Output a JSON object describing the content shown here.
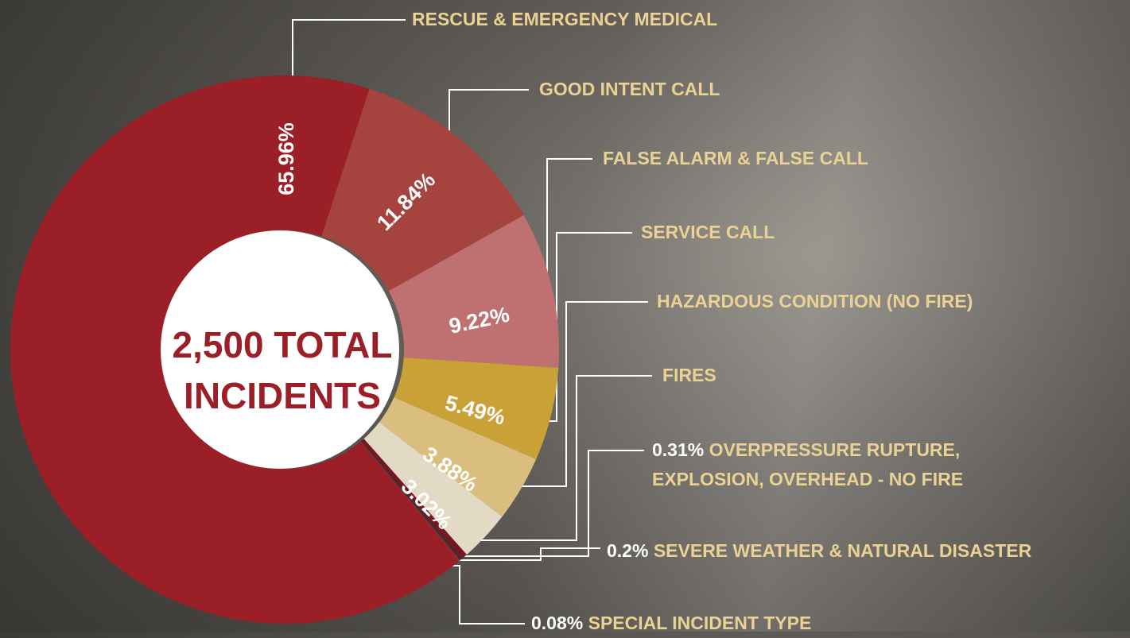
{
  "chart_data": {
    "type": "pie",
    "donut": true,
    "center_label": "2,500 TOTAL INCIDENTS",
    "categories": [
      "RESCUE & EMERGENCY MEDICAL",
      "GOOD INTENT CALL",
      "FALSE ALARM & FALSE CALL",
      "SERVICE CALL",
      "HAZARDOUS CONDITION (NO FIRE)",
      "FIRES",
      "OVERPRESSURE RUPTURE, EXPLOSION, OVERHEAD - NO FIRE",
      "SEVERE WEATHER & NATURAL DISASTER",
      "SPECIAL INCIDENT TYPE"
    ],
    "values": [
      65.96,
      11.84,
      9.22,
      5.49,
      3.88,
      3.02,
      0.31,
      0.2,
      0.08
    ],
    "value_labels": [
      "65.96%",
      "11.84%",
      "9.22%",
      "5.49%",
      "3.88%",
      "3.02%",
      "0.31%",
      "0.2%",
      "0.08%"
    ],
    "colors": [
      "#9b1f27",
      "#a5433e",
      "#bf7070",
      "#c9a136",
      "#d9be80",
      "#e2dac4",
      "#7a1520",
      "#4a2a2a",
      "#8a3030"
    ]
  }
}
